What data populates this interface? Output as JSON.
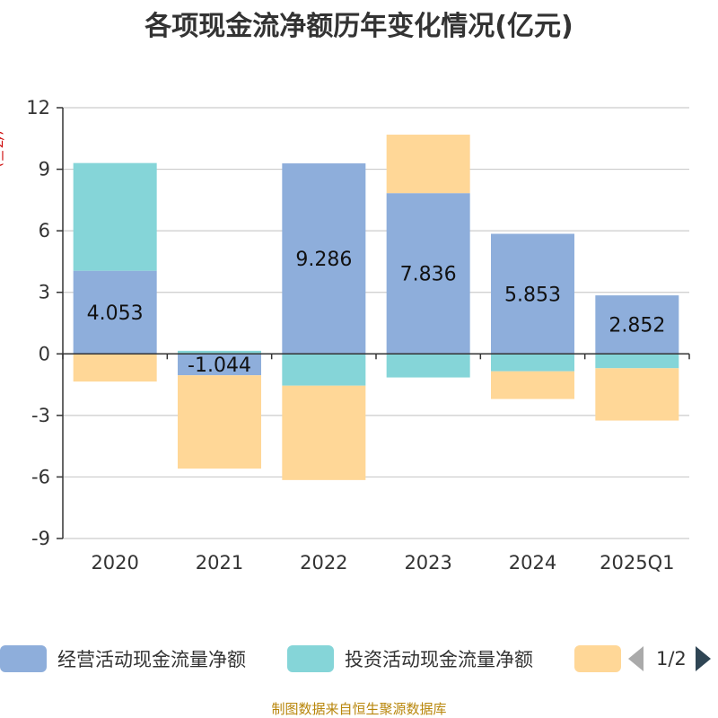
{
  "chart_data": {
    "type": "bar",
    "stacked": true,
    "title": "各项现金流净额历年变化情况(亿元)",
    "ylabel": "(亿元)",
    "ylim": [
      -9,
      12
    ],
    "yticks": [
      12,
      9,
      6,
      3,
      0,
      -3,
      -6,
      -9
    ],
    "grid": true,
    "categories": [
      "2020",
      "2021",
      "2022",
      "2023",
      "2024",
      "2025Q1"
    ],
    "series": [
      {
        "name": "经营活动现金流量净额",
        "color": "#8eaedb",
        "values": [
          4.053,
          -1.044,
          9.286,
          7.836,
          5.853,
          2.852
        ],
        "labels": [
          "4.053",
          "-1.044",
          "9.286",
          "7.836",
          "5.853",
          "2.852"
        ]
      },
      {
        "name": "投资活动现金流量净额",
        "color": "#85d5d8",
        "values": [
          5.25,
          0.15,
          -1.55,
          -1.15,
          -0.85,
          -0.7
        ]
      },
      {
        "name": "",
        "color": "#ffd797",
        "values": [
          -1.35,
          -4.55,
          -4.6,
          2.85,
          -1.35,
          -2.55
        ]
      }
    ]
  },
  "legend": {
    "items": [
      {
        "label": "经营活动现金流量净额",
        "color": "#8eaedb"
      },
      {
        "label": "投资活动现金流量净额",
        "color": "#85d5d8"
      },
      {
        "label": "",
        "color": "#ffd797"
      }
    ],
    "page": "1/2"
  },
  "source": "制图数据来自恒生聚源数据库"
}
